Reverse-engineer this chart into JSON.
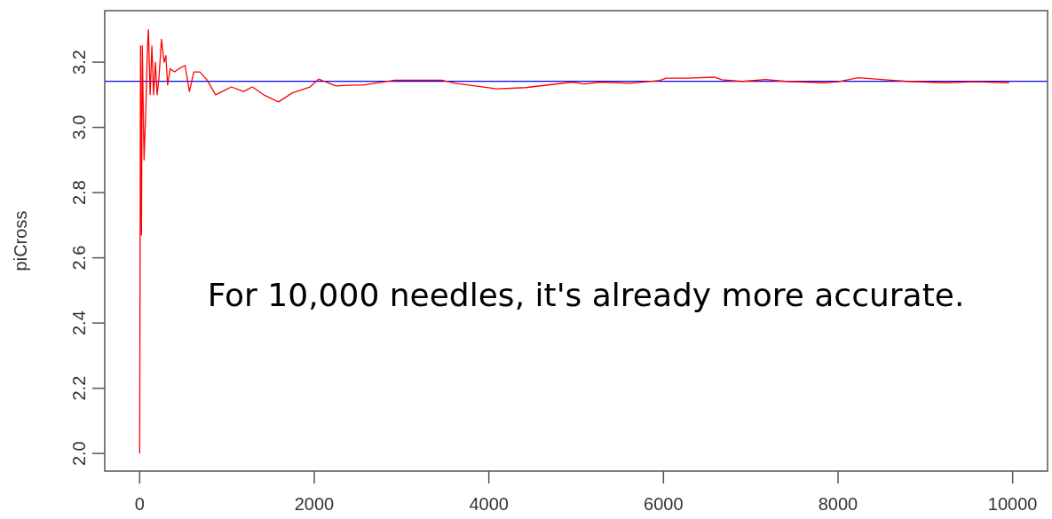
{
  "chart_data": {
    "type": "line",
    "ylabel": "piCross",
    "annotations": [
      "For 10,000 needles, it's already more accurate."
    ],
    "xlim": [
      -400,
      10400
    ],
    "xticks": [
      0,
      2000,
      4000,
      6000,
      8000,
      10000
    ],
    "ylim": [
      1.946,
      3.358
    ],
    "yticks": [
      {
        "value": 2.0,
        "label": "2.0"
      },
      {
        "value": 2.2,
        "label": "2.2"
      },
      {
        "value": 2.4,
        "label": "2.4"
      },
      {
        "value": 2.6,
        "label": "2.6"
      },
      {
        "value": 2.8,
        "label": "2.8"
      },
      {
        "value": 3.0,
        "label": "3.0"
      },
      {
        "value": 3.2,
        "label": "3.2"
      }
    ],
    "grid": false,
    "line_style": "solid",
    "ref_lines": [
      {
        "axis": "y",
        "value": 3.1416,
        "color": "#0000ff"
      }
    ],
    "series": [
      {
        "color": "#ff0000",
        "x": [
          0,
          10,
          20,
          30,
          50,
          70,
          90,
          100,
          120,
          140,
          160,
          180,
          200,
          220,
          250,
          280,
          300,
          320,
          350,
          400,
          450,
          520,
          570,
          620,
          690,
          770,
          870,
          1050,
          1190,
          1290,
          1420,
          1590,
          1750,
          1950,
          2050,
          2250,
          2450,
          2560,
          2920,
          3460,
          3620,
          4090,
          4420,
          4960,
          5090,
          5290,
          5620,
          5960,
          6030,
          6260,
          6580,
          6670,
          6900,
          7170,
          7400,
          7830,
          8000,
          8230,
          8500,
          8800,
          9230,
          9560,
          9960
        ],
        "values": [
          2.0,
          3.25,
          2.67,
          3.25,
          2.9,
          3.05,
          3.25,
          3.3,
          3.1,
          3.25,
          3.1,
          3.2,
          3.1,
          3.15,
          3.27,
          3.2,
          3.22,
          3.13,
          3.18,
          3.17,
          3.18,
          3.19,
          3.11,
          3.17,
          3.17,
          3.146,
          3.1,
          3.124,
          3.11,
          3.124,
          3.1,
          3.078,
          3.106,
          3.124,
          3.148,
          3.127,
          3.13,
          3.13,
          3.145,
          3.145,
          3.135,
          3.118,
          3.122,
          3.139,
          3.133,
          3.139,
          3.135,
          3.144,
          3.151,
          3.151,
          3.154,
          3.146,
          3.141,
          3.147,
          3.141,
          3.137,
          3.14,
          3.152,
          3.147,
          3.141,
          3.137,
          3.14,
          3.137
        ]
      }
    ]
  }
}
